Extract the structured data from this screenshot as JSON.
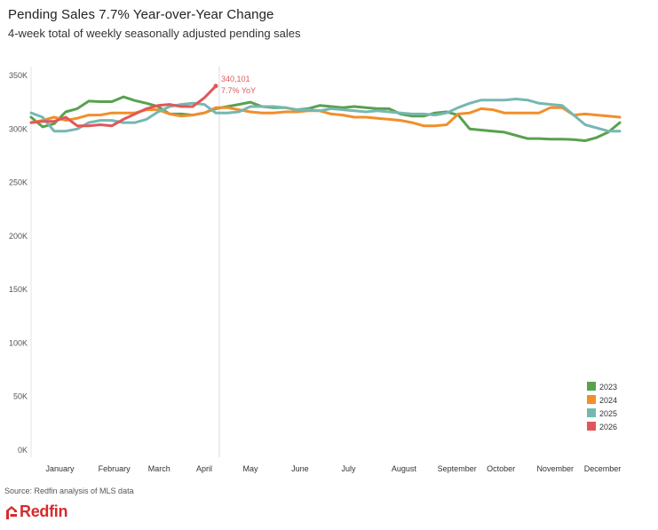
{
  "header": {
    "title": "Pending Sales 7.7% Year-over-Year Change",
    "subtitle": "4-week total of weekly seasonally adjusted pending sales"
  },
  "footer": {
    "source": "Source: Redfin analysis of MLS data",
    "brand": "Redfin"
  },
  "chart_data": {
    "type": "line",
    "title": "Pending Sales 7.7% Year-over-Year Change",
    "subtitle": "4-week total of weekly seasonally adjusted pending sales",
    "xlabel": "",
    "ylabel": "",
    "x_unit": "week of year",
    "xlim": [
      1,
      53
    ],
    "ylim": [
      0,
      350000
    ],
    "y_ticks": [
      0,
      50000,
      100000,
      150000,
      200000,
      250000,
      300000,
      350000
    ],
    "y_tick_labels": [
      "0K",
      "50K",
      "100K",
      "150K",
      "200K",
      "250K",
      "300K",
      "350K"
    ],
    "month_labels": [
      "January",
      "February",
      "March",
      "April",
      "May",
      "June",
      "July",
      "August",
      "September",
      "October",
      "November",
      "December"
    ],
    "month_label_weeks": [
      3.5,
      8.2,
      12.1,
      16.0,
      20.0,
      24.3,
      28.5,
      33.3,
      37.9,
      41.7,
      46.4,
      50.5
    ],
    "reference_line_week": 17.3,
    "grid": false,
    "legend_position": "bottom-right",
    "annotation": {
      "series": "2026",
      "week": 17,
      "lines": [
        "340,101",
        "7.7% YoY"
      ]
    },
    "series": [
      {
        "name": "2023",
        "color": "#59a14f",
        "x": [
          1,
          2,
          3,
          4,
          5,
          6,
          7,
          8,
          9,
          10,
          11,
          12,
          13,
          14,
          15,
          16,
          17,
          18,
          19,
          20,
          21,
          22,
          23,
          24,
          25,
          26,
          27,
          28,
          29,
          30,
          31,
          32,
          33,
          34,
          35,
          36,
          37,
          38,
          39,
          40,
          41,
          42,
          43,
          44,
          45,
          46,
          47,
          48,
          49,
          50,
          51,
          52
        ],
        "y": [
          311000,
          302000,
          305000,
          316000,
          319000,
          326000,
          325500,
          325500,
          330000,
          326500,
          324000,
          321000,
          314000,
          314000,
          313000,
          315000,
          319000,
          321000,
          323000,
          325000,
          321000,
          320000,
          320000,
          318000,
          319000,
          322000,
          321000,
          320000,
          321000,
          320000,
          319000,
          319000,
          314000,
          312000,
          312000,
          315000,
          316000,
          313000,
          300000,
          299000,
          298000,
          297000,
          294000,
          291000,
          291000,
          290500,
          290500,
          290000,
          289000,
          292000,
          297000,
          306000
        ]
      },
      {
        "name": "2024",
        "color": "#f28e2b",
        "x": [
          1,
          2,
          3,
          4,
          5,
          6,
          7,
          8,
          9,
          10,
          11,
          12,
          13,
          14,
          15,
          16,
          17,
          18,
          19,
          20,
          21,
          22,
          23,
          24,
          25,
          26,
          27,
          28,
          29,
          30,
          31,
          32,
          33,
          34,
          35,
          36,
          37,
          38,
          39,
          40,
          41,
          42,
          43,
          44,
          45,
          46,
          47,
          48,
          49,
          50,
          51,
          52
        ],
        "y": [
          306000,
          308000,
          311000,
          308000,
          310000,
          313000,
          313000,
          315000,
          315000,
          315000,
          318000,
          318000,
          314000,
          312000,
          313000,
          315000,
          320000,
          320000,
          318000,
          316000,
          315000,
          315000,
          316000,
          316000,
          317000,
          317000,
          314000,
          313000,
          311000,
          311000,
          310000,
          309000,
          308000,
          306000,
          303000,
          303000,
          304000,
          314000,
          315000,
          319000,
          318000,
          315000,
          315000,
          315000,
          315000,
          320000,
          320000,
          313000,
          314000,
          313000,
          312000,
          311000
        ]
      },
      {
        "name": "2025",
        "color": "#76b7b2",
        "x": [
          1,
          2,
          3,
          4,
          5,
          6,
          7,
          8,
          9,
          10,
          11,
          12,
          13,
          14,
          15,
          16,
          17,
          18,
          19,
          20,
          21,
          22,
          23,
          24,
          25,
          26,
          27,
          28,
          29,
          30,
          31,
          32,
          33,
          34,
          35,
          36,
          37,
          38,
          39,
          40,
          41,
          42,
          43,
          44,
          45,
          46,
          47,
          48,
          49,
          50,
          51,
          52
        ],
        "y": [
          315000,
          311000,
          298000,
          298000,
          300000,
          306000,
          308000,
          308000,
          306000,
          306000,
          309000,
          316000,
          321000,
          323000,
          324000,
          323000,
          315000,
          315000,
          316000,
          321000,
          321000,
          321000,
          320000,
          318000,
          318000,
          317000,
          319000,
          318000,
          317000,
          316000,
          317000,
          316000,
          315000,
          314000,
          314000,
          313000,
          315000,
          320000,
          324000,
          327000,
          327000,
          327000,
          328000,
          327000,
          324000,
          323000,
          322000,
          313000,
          304000,
          301000,
          298000,
          298000
        ]
      },
      {
        "name": "2026",
        "color": "#e15759",
        "x": [
          1,
          2,
          3,
          4,
          5,
          6,
          7,
          8,
          9,
          10,
          11,
          12,
          13,
          14,
          15,
          16,
          17
        ],
        "y": [
          306000,
          307000,
          307000,
          311000,
          303000,
          303000,
          304000,
          303000,
          309000,
          314000,
          319000,
          322000,
          323000,
          321000,
          321000,
          329000,
          340101
        ]
      }
    ]
  }
}
